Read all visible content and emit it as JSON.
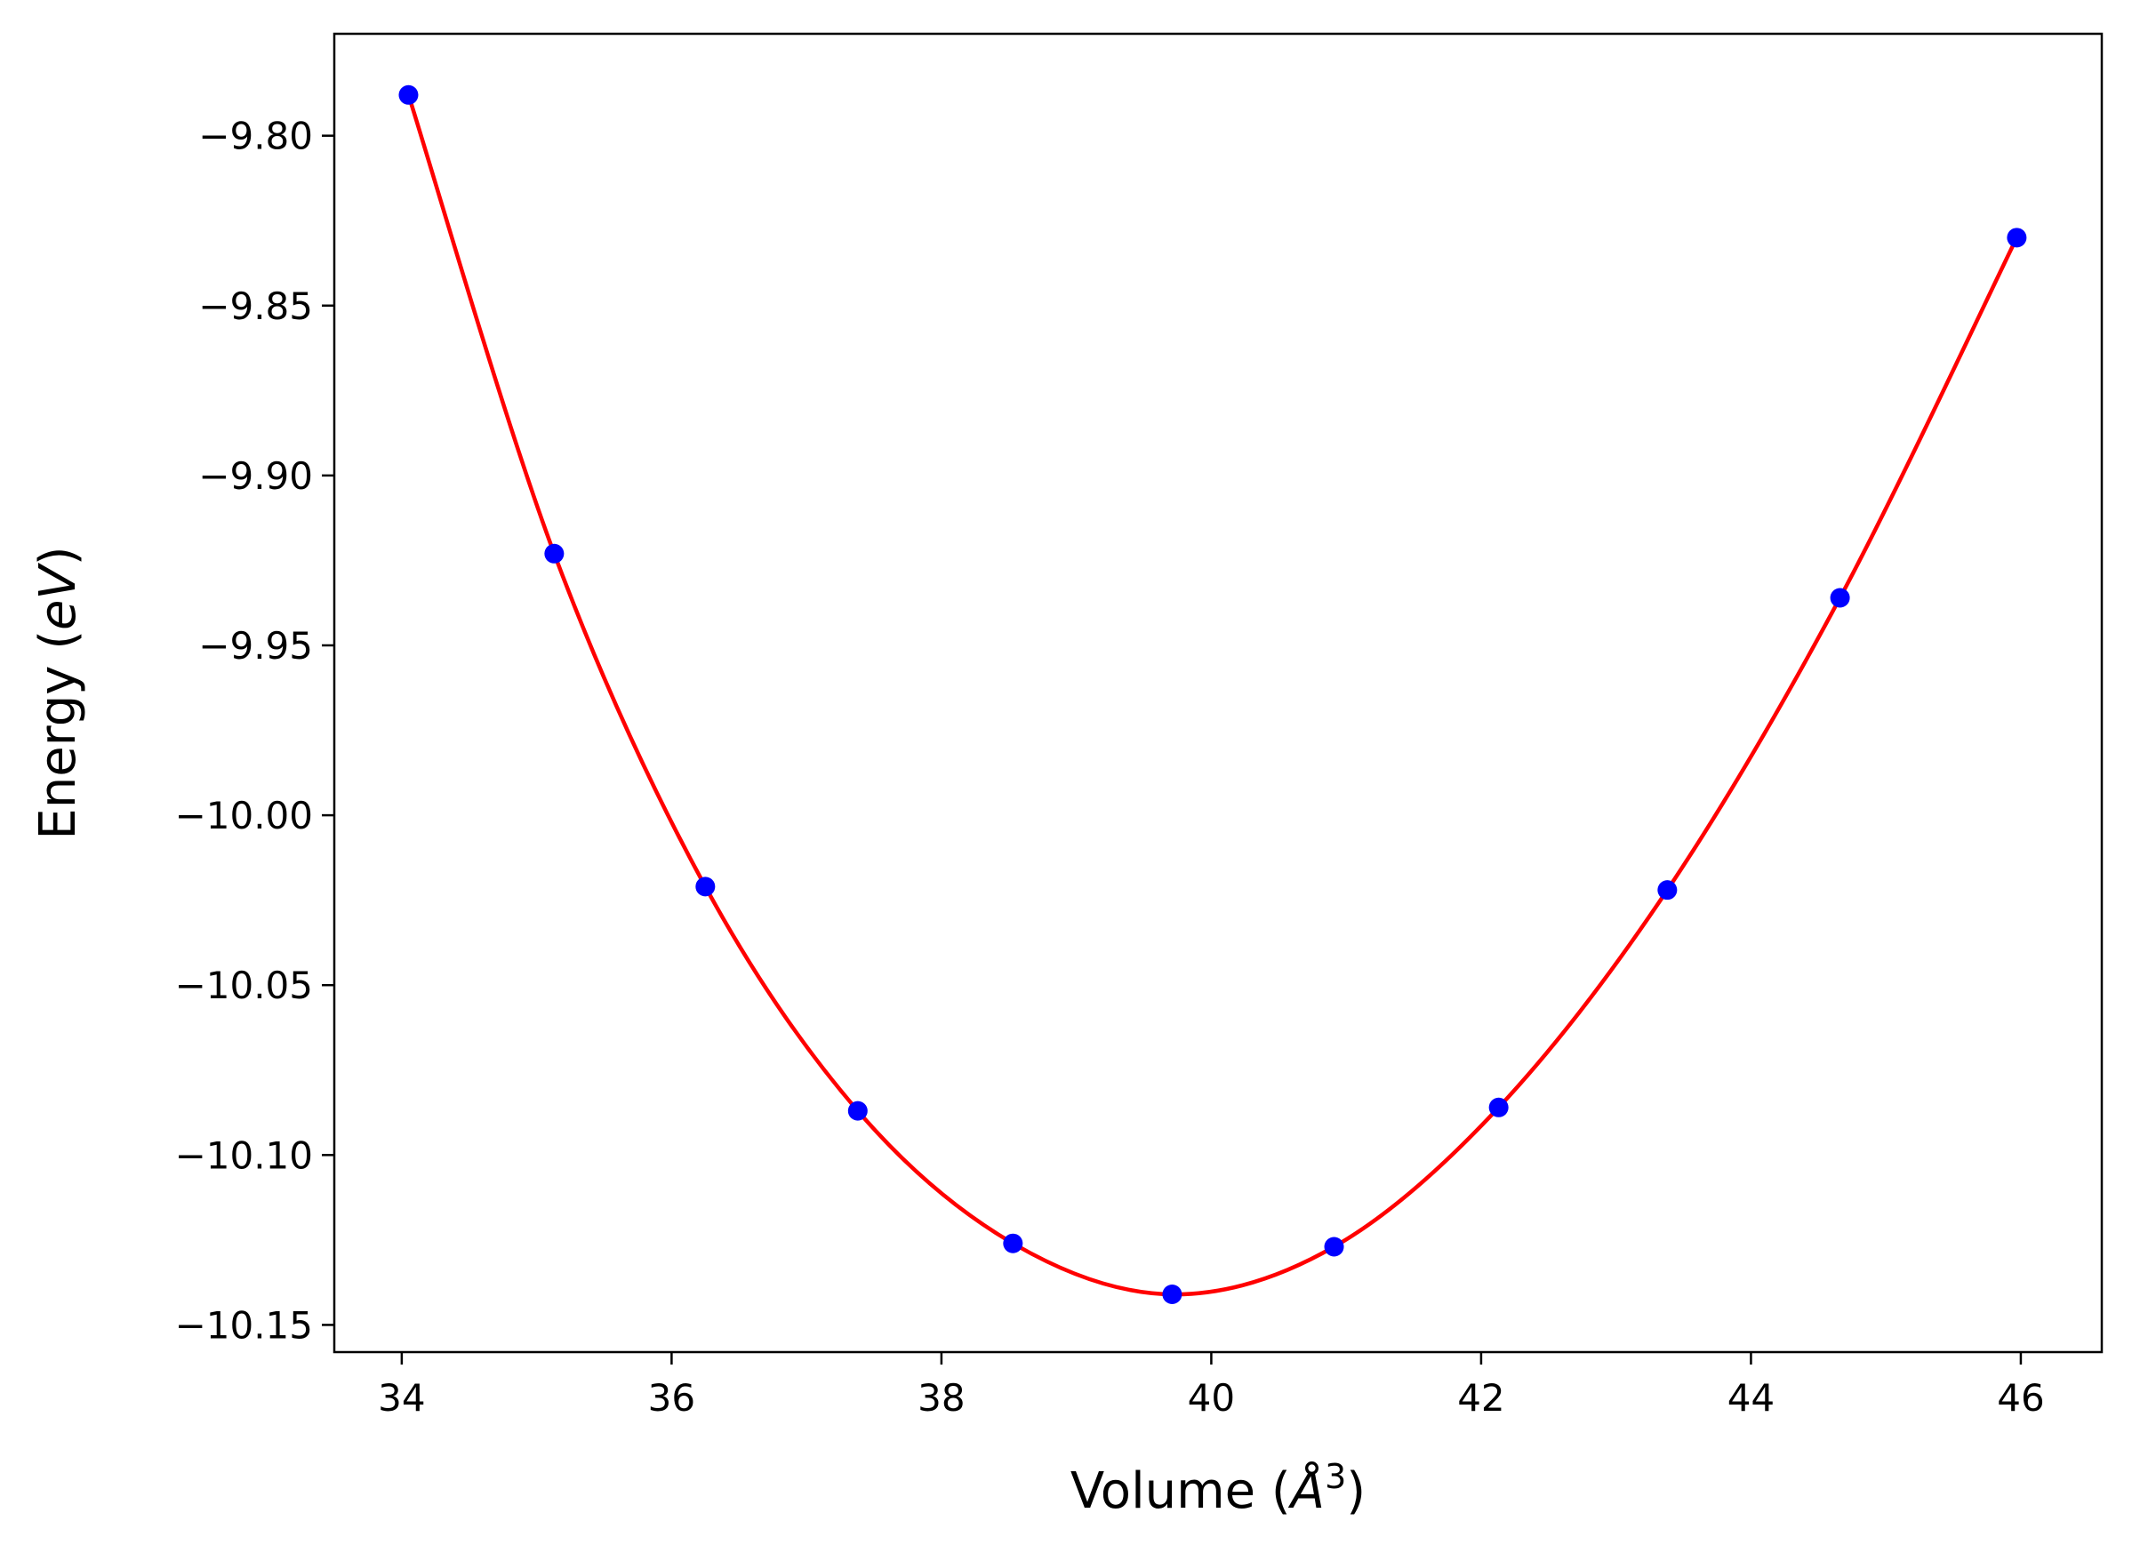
{
  "chart_data": {
    "type": "scatter",
    "title": "",
    "xlabel": "Volume",
    "xlabel_unit_symbol": "Å",
    "xlabel_unit_power": "3",
    "ylabel": "Energy",
    "ylabel_unit": "eV",
    "xlim": [
      33.5,
      46.6
    ],
    "ylim": [
      -10.158,
      -9.77
    ],
    "x_ticks": [
      34,
      36,
      38,
      40,
      42,
      44,
      46
    ],
    "x_tick_labels": [
      "34",
      "36",
      "38",
      "40",
      "42",
      "44",
      "46"
    ],
    "y_ticks": [
      -9.8,
      -9.85,
      -9.9,
      -9.95,
      -10.0,
      -10.05,
      -10.1,
      -10.15
    ],
    "y_tick_labels": [
      "−9.80",
      "−9.85",
      "−9.90",
      "−9.95",
      "−10.00",
      "−10.05",
      "−10.10",
      "−10.15"
    ],
    "grid": false,
    "series": [
      {
        "kind": "scatter",
        "color": "#0000ff",
        "x": [
          34.05,
          35.13,
          36.25,
          37.38,
          38.53,
          39.71,
          40.91,
          42.13,
          43.38,
          44.66,
          45.97
        ],
        "y": [
          -9.788,
          -9.923,
          -10.021,
          -10.087,
          -10.126,
          -10.141,
          -10.127,
          -10.086,
          -10.022,
          -9.936,
          -9.83
        ]
      },
      {
        "kind": "line",
        "color": "#ff0000",
        "x": [
          34.05,
          35.13,
          36.25,
          37.38,
          38.53,
          39.71,
          40.91,
          42.13,
          43.38,
          44.66,
          45.97
        ],
        "y": [
          -9.788,
          -9.923,
          -10.021,
          -10.087,
          -10.126,
          -10.141,
          -10.127,
          -10.086,
          -10.022,
          -9.936,
          -9.83
        ]
      }
    ]
  }
}
